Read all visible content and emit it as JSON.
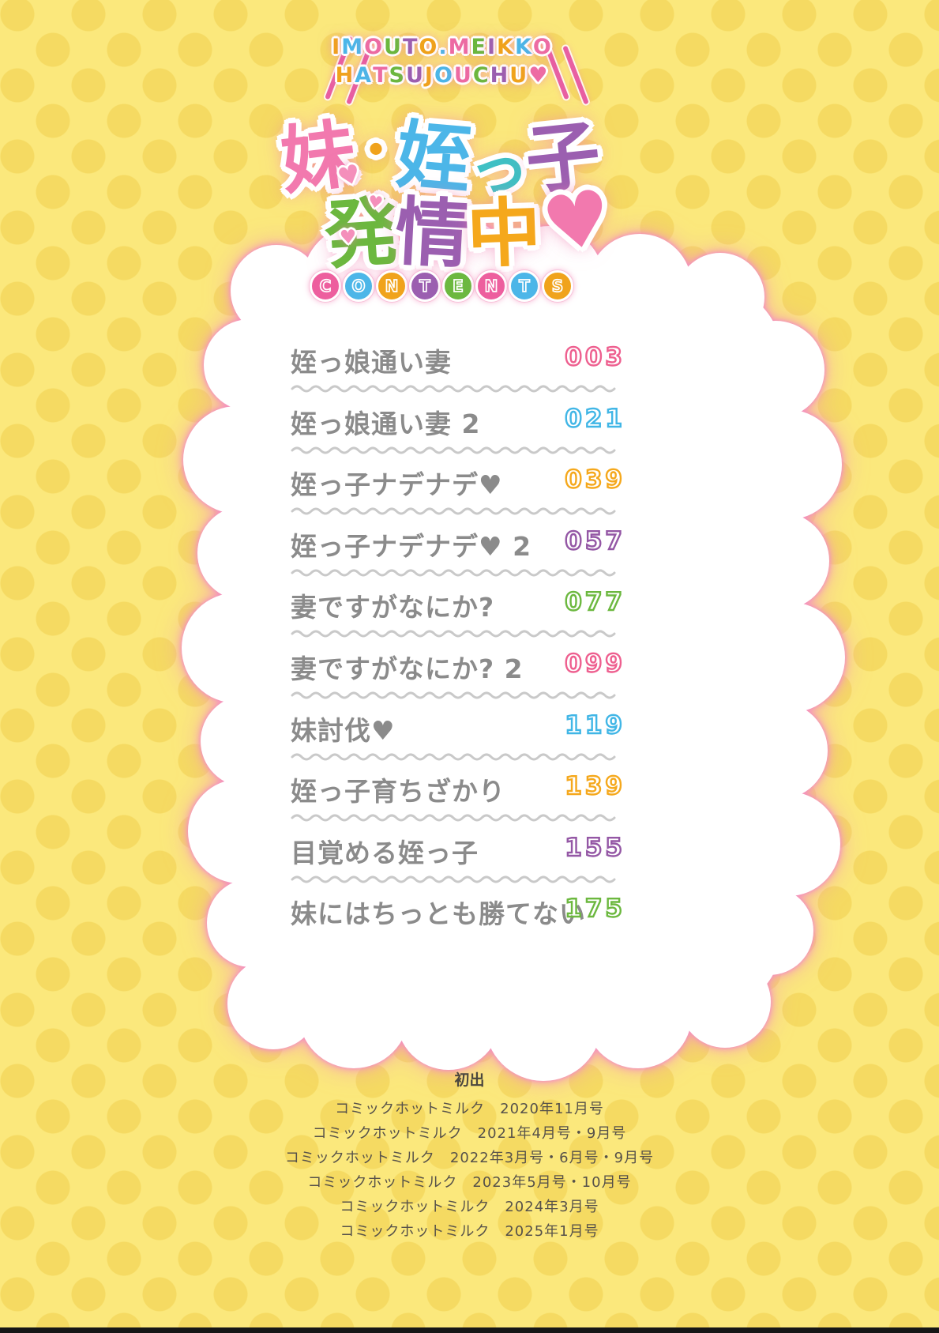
{
  "logo": {
    "line1": "IMOUTO.MEIKKO",
    "line2": "HATSUJOUCHU♥",
    "palette": [
      "#f0a31c",
      "#4cb6e8",
      "#ed6ba3",
      "#6cb83f",
      "#9b5fb0"
    ],
    "heart_color": "#ed6ba3"
  },
  "title": {
    "line1": [
      {
        "ch": "妹",
        "color": "#f279ae"
      },
      {
        "ch": "・",
        "color": "#f0a31c"
      },
      {
        "ch": "姪",
        "color": "#4cb6e8"
      },
      {
        "ch": "っ",
        "color": "#3fc0c4"
      },
      {
        "ch": "子",
        "color": "#9b5fb0"
      }
    ],
    "line2": [
      {
        "ch": "発",
        "color": "#6cb83f"
      },
      {
        "ch": "情",
        "color": "#9b5fb0"
      },
      {
        "ch": "中",
        "color": "#f5a81c"
      }
    ],
    "heart": {
      "ch": "♥",
      "color": "#f279ae"
    },
    "small_hearts": [
      "♥",
      "♥",
      "♥"
    ],
    "small_heart_color": "#f48fbb"
  },
  "contents_label": {
    "letters": [
      {
        "ch": "C",
        "bg": "#ed5f9e"
      },
      {
        "ch": "O",
        "bg": "#4cb6e8"
      },
      {
        "ch": "N",
        "bg": "#f0a31c"
      },
      {
        "ch": "T",
        "bg": "#9b5fb0"
      },
      {
        "ch": "E",
        "bg": "#6cb83f"
      },
      {
        "ch": "N",
        "bg": "#ed5f9e"
      },
      {
        "ch": "T",
        "bg": "#4cb6e8"
      },
      {
        "ch": "S",
        "bg": "#f0a31c"
      }
    ]
  },
  "toc": {
    "items": [
      {
        "title": "姪っ娘通い妻",
        "page": "003",
        "color": "#ee5f8f"
      },
      {
        "title": "姪っ娘通い妻 2",
        "page": "021",
        "color": "#41b6e6"
      },
      {
        "title": "姪っ子ナデナデ♥",
        "page": "039",
        "color": "#f5a81c"
      },
      {
        "title": "姪っ子ナデナデ♥ 2",
        "page": "057",
        "color": "#9457a5"
      },
      {
        "title": "妻ですがなにか?",
        "page": "077",
        "color": "#6cb83f"
      },
      {
        "title": "妻ですがなにか? 2",
        "page": "099",
        "color": "#ee5f8f"
      },
      {
        "title": "妹討伐♥",
        "page": "119",
        "color": "#41b6e6"
      },
      {
        "title": "姪っ子育ちざかり",
        "page": "139",
        "color": "#f5a81c"
      },
      {
        "title": "目覚める姪っ子",
        "page": "155",
        "color": "#9457a5"
      },
      {
        "title": "妹にはちっとも勝てない",
        "page": "175",
        "color": "#6cb83f"
      }
    ]
  },
  "colophon": {
    "heading": "初出",
    "lines": [
      "コミックホットミルク　2020年11月号",
      "コミックホットミルク　2021年4月号・9月号",
      "コミックホットミルク　2022年3月号・6月号・9月号",
      "コミックホットミルク　2023年5月号・10月号",
      "コミックホットミルク　2024年3月号",
      "コミックホットミルク　2025年1月号"
    ]
  },
  "background": {
    "base": "#fbe87c",
    "dot": "#f5da62",
    "cloud_glow": "#f492be"
  }
}
